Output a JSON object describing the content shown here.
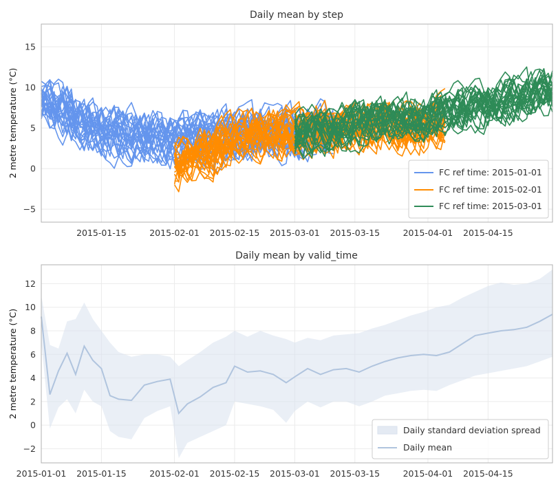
{
  "chart_data": [
    {
      "type": "line",
      "title": "Daily mean by step",
      "xlabel": "",
      "ylabel": "2 metre temperature (°C)",
      "xlim": [
        "2015-01-01",
        "2015-04-30"
      ],
      "ylim": [
        -6.6,
        17.8
      ],
      "xticks": [
        "2015-01-15",
        "2015-02-01",
        "2015-02-15",
        "2015-03-01",
        "2015-03-15",
        "2015-04-01",
        "2015-04-15"
      ],
      "yticks": [
        -5,
        0,
        5,
        10,
        15
      ],
      "grid": true,
      "legend_position": "bottom-right",
      "ensemble_members_per_series": 25,
      "series": [
        {
          "name": "FC ref time: 2015-01-01",
          "color": "#6495ED",
          "start": "2015-01-01",
          "end": "2015-03-10",
          "mean_x": [
            "2015-01-01",
            "2015-01-15",
            "2015-02-01",
            "2015-02-15",
            "2015-03-01",
            "2015-03-10"
          ],
          "mean_y": [
            8.5,
            4.5,
            3.5,
            4.0,
            4.5,
            5.0
          ],
          "spread": 3.0
        },
        {
          "name": "FC ref time: 2015-02-01",
          "color": "#FF8C00",
          "start": "2015-02-01",
          "end": "2015-04-05",
          "mean_x": [
            "2015-02-01",
            "2015-02-15",
            "2015-03-01",
            "2015-03-15",
            "2015-04-01",
            "2015-04-05"
          ],
          "mean_y": [
            0.5,
            3.5,
            4.5,
            5.0,
            5.5,
            6.0
          ],
          "spread": 2.8
        },
        {
          "name": "FC ref time: 2015-03-01",
          "color": "#2E8B57",
          "start": "2015-03-01",
          "end": "2015-04-30",
          "mean_x": [
            "2015-03-01",
            "2015-03-15",
            "2015-04-01",
            "2015-04-15",
            "2015-04-30"
          ],
          "mean_y": [
            4.0,
            5.5,
            6.5,
            8.0,
            9.5
          ],
          "spread": 2.6
        }
      ]
    },
    {
      "type": "area",
      "title": "Daily mean by valid_time",
      "xlabel": "",
      "ylabel": "2 metre temperature (°C)",
      "xlim": [
        "2015-01-01",
        "2015-04-30"
      ],
      "ylim": [
        -3.2,
        13.6
      ],
      "xticks": [
        "2015-01-01",
        "2015-01-15",
        "2015-02-01",
        "2015-02-15",
        "2015-03-01",
        "2015-03-15",
        "2015-04-01",
        "2015-04-15"
      ],
      "yticks": [
        -2,
        0,
        2,
        4,
        6,
        8,
        10,
        12
      ],
      "grid": true,
      "legend_position": "bottom-right",
      "series": [
        {
          "name": "Daily mean",
          "color": "#B0C4DE",
          "x": [
            "2015-01-01",
            "2015-01-03",
            "2015-01-05",
            "2015-01-07",
            "2015-01-09",
            "2015-01-11",
            "2015-01-13",
            "2015-01-15",
            "2015-01-17",
            "2015-01-19",
            "2015-01-22",
            "2015-01-25",
            "2015-01-28",
            "2015-01-31",
            "2015-02-02",
            "2015-02-04",
            "2015-02-07",
            "2015-02-10",
            "2015-02-13",
            "2015-02-15",
            "2015-02-18",
            "2015-02-21",
            "2015-02-24",
            "2015-02-27",
            "2015-03-01",
            "2015-03-04",
            "2015-03-07",
            "2015-03-10",
            "2015-03-13",
            "2015-03-16",
            "2015-03-19",
            "2015-03-22",
            "2015-03-25",
            "2015-03-28",
            "2015-03-31",
            "2015-04-03",
            "2015-04-06",
            "2015-04-09",
            "2015-04-12",
            "2015-04-15",
            "2015-04-18",
            "2015-04-21",
            "2015-04-24",
            "2015-04-27",
            "2015-04-30"
          ],
          "y": [
            9.2,
            2.6,
            4.6,
            6.1,
            4.3,
            6.7,
            5.5,
            4.8,
            2.5,
            2.2,
            2.1,
            3.4,
            3.7,
            3.9,
            1.0,
            1.8,
            2.4,
            3.2,
            3.6,
            5.0,
            4.5,
            4.6,
            4.3,
            3.6,
            4.1,
            4.8,
            4.3,
            4.7,
            4.8,
            4.5,
            5.0,
            5.4,
            5.7,
            5.9,
            6.0,
            5.9,
            6.2,
            6.9,
            7.6,
            7.8,
            8.0,
            8.1,
            8.3,
            8.8,
            9.4
          ]
        },
        {
          "name": "Daily standard deviation spread",
          "color": "#D9E1EE",
          "upper": [
            11.0,
            6.8,
            6.5,
            8.8,
            9.0,
            10.4,
            9.0,
            8.0,
            7.0,
            6.2,
            5.8,
            6.0,
            6.0,
            5.8,
            5.0,
            5.5,
            6.2,
            7.0,
            7.5,
            8.0,
            7.5,
            8.0,
            7.6,
            7.3,
            7.0,
            7.4,
            7.2,
            7.6,
            7.7,
            7.8,
            8.2,
            8.5,
            8.9,
            9.3,
            9.6,
            10.0,
            10.2,
            10.8,
            11.3,
            11.8,
            12.1,
            11.9,
            12.0,
            12.4,
            13.2
          ],
          "lower": [
            7.0,
            -0.3,
            1.5,
            2.2,
            1.0,
            3.0,
            2.0,
            1.6,
            -0.5,
            -1.0,
            -1.2,
            0.6,
            1.2,
            1.6,
            -2.8,
            -1.5,
            -1.0,
            -0.5,
            0.0,
            2.0,
            1.8,
            1.6,
            1.3,
            0.2,
            1.2,
            2.0,
            1.5,
            2.0,
            2.0,
            1.6,
            2.0,
            2.5,
            2.7,
            2.9,
            3.0,
            2.9,
            3.4,
            3.8,
            4.2,
            4.4,
            4.6,
            4.8,
            5.0,
            5.4,
            5.8
          ]
        }
      ]
    }
  ]
}
